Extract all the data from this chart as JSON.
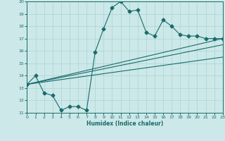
{
  "xlabel": "Humidex (Indice chaleur)",
  "xlim": [
    0,
    23
  ],
  "ylim": [
    11,
    20
  ],
  "xticks": [
    0,
    1,
    2,
    3,
    4,
    5,
    6,
    7,
    8,
    9,
    10,
    11,
    12,
    13,
    14,
    15,
    16,
    17,
    18,
    19,
    20,
    21,
    22,
    23
  ],
  "yticks": [
    11,
    12,
    13,
    14,
    15,
    16,
    17,
    18,
    19,
    20
  ],
  "bg_color": "#cce8e8",
  "line_color": "#1a6b6b",
  "grid_color": "#aad4d4",
  "line1_x": [
    0,
    1,
    2,
    3,
    4,
    5,
    6,
    7,
    8,
    9,
    10,
    11,
    12,
    13,
    14,
    15,
    16,
    17,
    18,
    19,
    20,
    21,
    22,
    23
  ],
  "line1_y": [
    13.3,
    14.0,
    12.6,
    12.4,
    11.2,
    11.5,
    11.5,
    11.2,
    15.9,
    17.8,
    19.5,
    20.0,
    19.2,
    19.3,
    17.5,
    17.2,
    18.5,
    18.0,
    17.3,
    17.2,
    17.2,
    17.0,
    17.0,
    17.0
  ],
  "line2_x": [
    0,
    23
  ],
  "line2_y": [
    13.3,
    17.0
  ],
  "line3_x": [
    0,
    23
  ],
  "line3_y": [
    13.3,
    16.5
  ],
  "line4_x": [
    0,
    23
  ],
  "line4_y": [
    13.3,
    15.5
  ]
}
